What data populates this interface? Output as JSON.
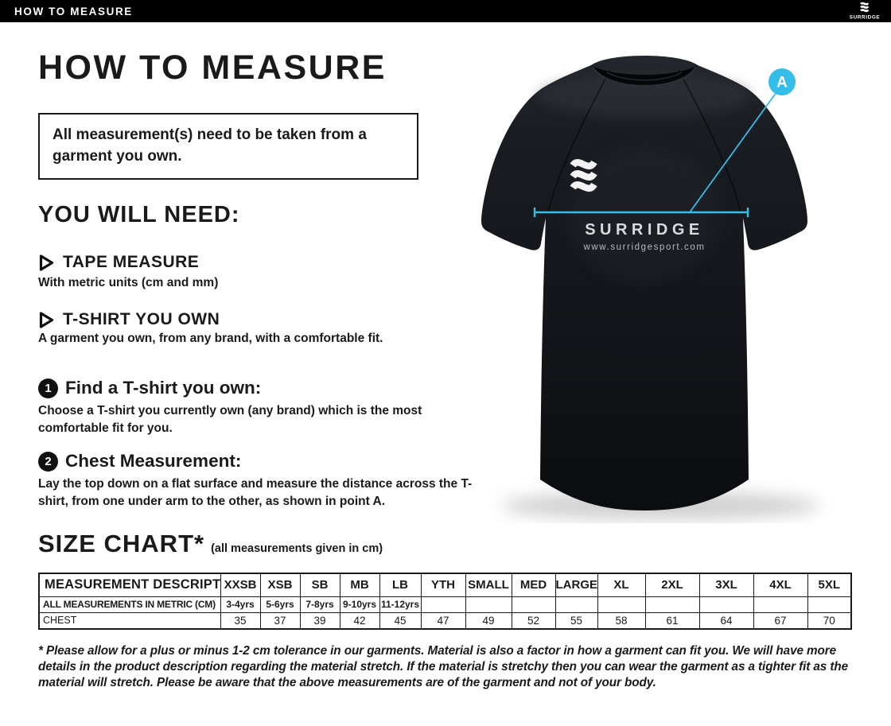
{
  "title_bar": {
    "title": "HOW TO MEASURE",
    "brand": "SURRIDGE"
  },
  "heading": "HOW TO MEASURE",
  "note": "All measurement(s) need to be taken from a garment you own.",
  "you_will_need": {
    "heading": "YOU WILL NEED:",
    "items": [
      {
        "label": "TAPE MEASURE",
        "description": "With metric units (cm and mm)"
      },
      {
        "label": "T-SHIRT YOU OWN",
        "description": "A garment you own, from any brand, with a comfortable fit."
      }
    ]
  },
  "steps": [
    {
      "number": "1",
      "title": "Find a T-shirt you own:",
      "description": "Choose a T-shirt you currently own (any brand) which is the most comfortable fit for you."
    },
    {
      "number": "2",
      "title": "Chest Measurement:",
      "description": "Lay the top down on a flat surface and measure the distance across the T-shirt, from one under arm to the other, as shown in point A."
    }
  ],
  "size_chart": {
    "title": "SIZE CHART*",
    "subtitle": "(all measurements given in cm)",
    "table": {
      "header_label": "MEASUREMENT DESCRIPTION",
      "sizes": [
        "XXSB",
        "XSB",
        "SB",
        "MB",
        "LB",
        "YTH",
        "SMALL",
        "MED",
        "LARGE",
        "XL",
        "2XL",
        "3XL",
        "4XL",
        "5XL"
      ],
      "metric_label": "ALL MEASUREMENTS IN METRIC (CM)",
      "age_ranges": [
        "3-4yrs",
        "5-6yrs",
        "7-8yrs",
        "9-10yrs",
        "11-12yrs",
        "",
        "",
        "",
        "",
        "",
        "",
        "",
        "",
        ""
      ],
      "chest_label": "CHEST",
      "chest_values": [
        "35",
        "37",
        "39",
        "42",
        "45",
        "47",
        "49",
        "52",
        "55",
        "58",
        "61",
        "64",
        "67",
        "70"
      ]
    }
  },
  "footnote": "* Please allow for a plus or minus 1-2 cm tolerance in our garments. Material is also a factor in how a garment can fit you. We will have more details in the product description regarding the material stretch.  If the material is stretchy then you can wear the garment as a tighter fit as the material will stretch.  Please be aware that the above measurements are of the garment and not of your body.",
  "shirt": {
    "brand": "SURRIDGE",
    "url": "www.surridgesport.com",
    "point_label": "A"
  },
  "colors": {
    "accent": "#35bde9",
    "ink": "#1a1a1a",
    "shirt_dark": "#121419"
  }
}
